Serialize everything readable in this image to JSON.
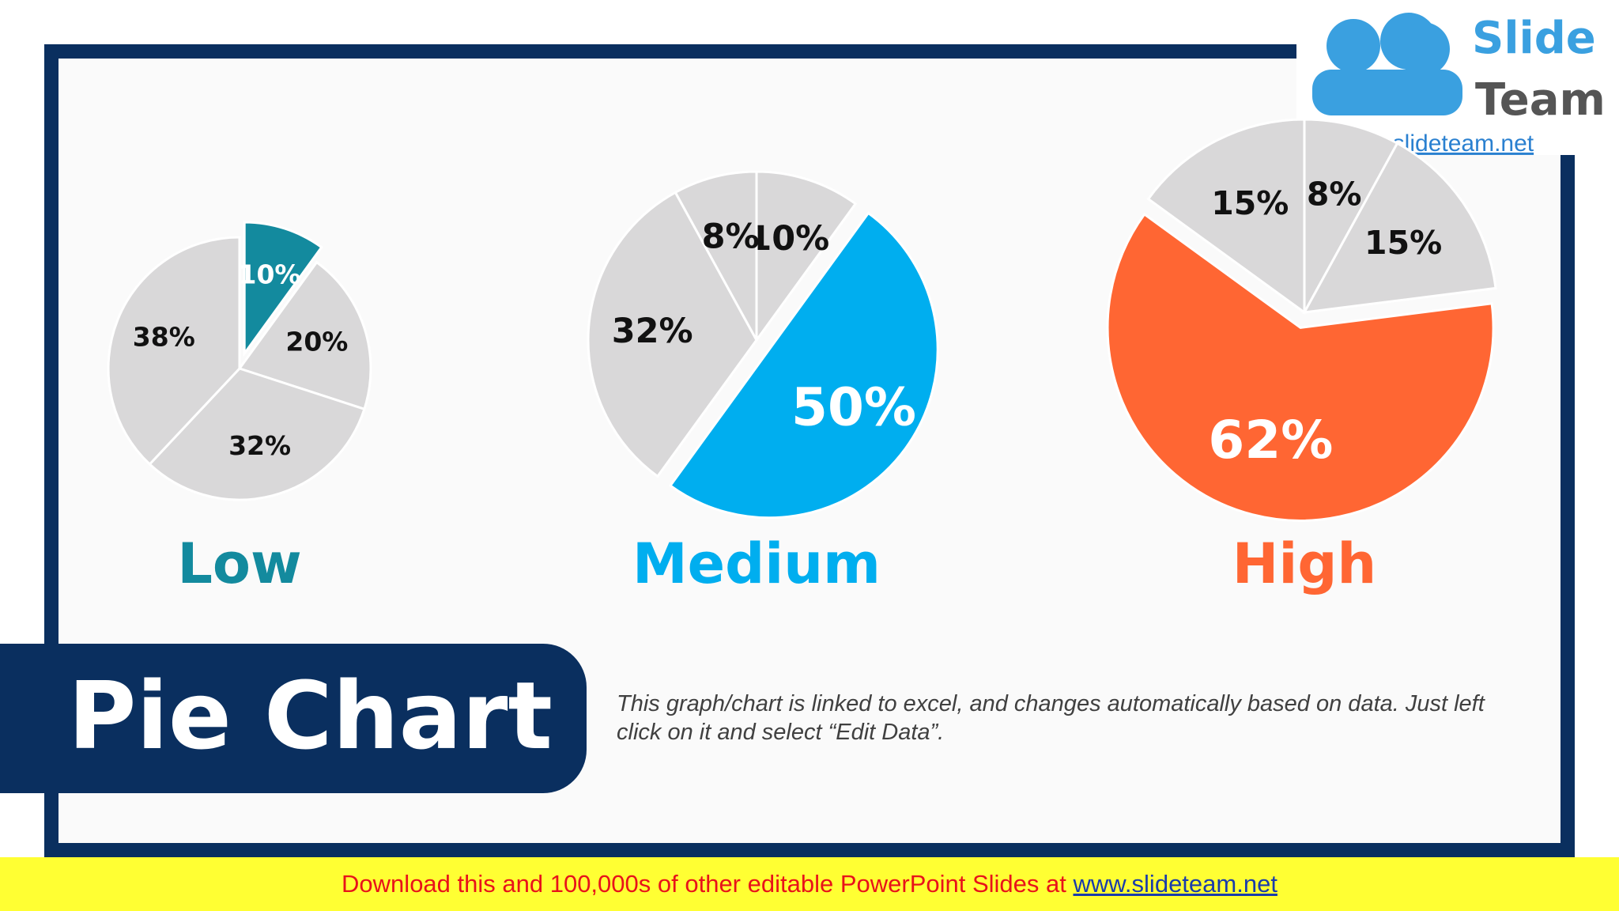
{
  "chart_data": [
    {
      "type": "pie",
      "title": "Low",
      "values": [
        10,
        20,
        32,
        38
      ],
      "value_labels": [
        "10%",
        "20%",
        "32%",
        "38%"
      ],
      "colors": [
        "#138a9e",
        "#d9d8d9",
        "#d9d8d9",
        "#d9d8d9"
      ]
    },
    {
      "type": "pie",
      "title": "Medium",
      "values": [
        10,
        50,
        32,
        8
      ],
      "value_labels": [
        "10%",
        "50%",
        "32%",
        "8%"
      ],
      "colors": [
        "#d9d8d9",
        "#00aeef",
        "#d9d8d9",
        "#d9d8d9"
      ]
    },
    {
      "type": "pie",
      "title": "High",
      "values": [
        8,
        15,
        62,
        15
      ],
      "value_labels": [
        "8%",
        "15%",
        "62%",
        "15%"
      ],
      "colors": [
        "#d9d8d9",
        "#d9d8d9",
        "#ff6633",
        "#d9d8d9"
      ]
    }
  ],
  "slide_title": "Pie Chart",
  "note": "This graph/chart is linked to excel, and changes automatically based on data. Just left click on it and select “Edit Data”.",
  "footer": {
    "text": "Download this and 100,000s of other editable PowerPoint Slides at ",
    "link": "www.slideteam.net"
  },
  "logo": {
    "line1": "Slide",
    "line2": "Team",
    "url": "www.slideteam.net"
  }
}
